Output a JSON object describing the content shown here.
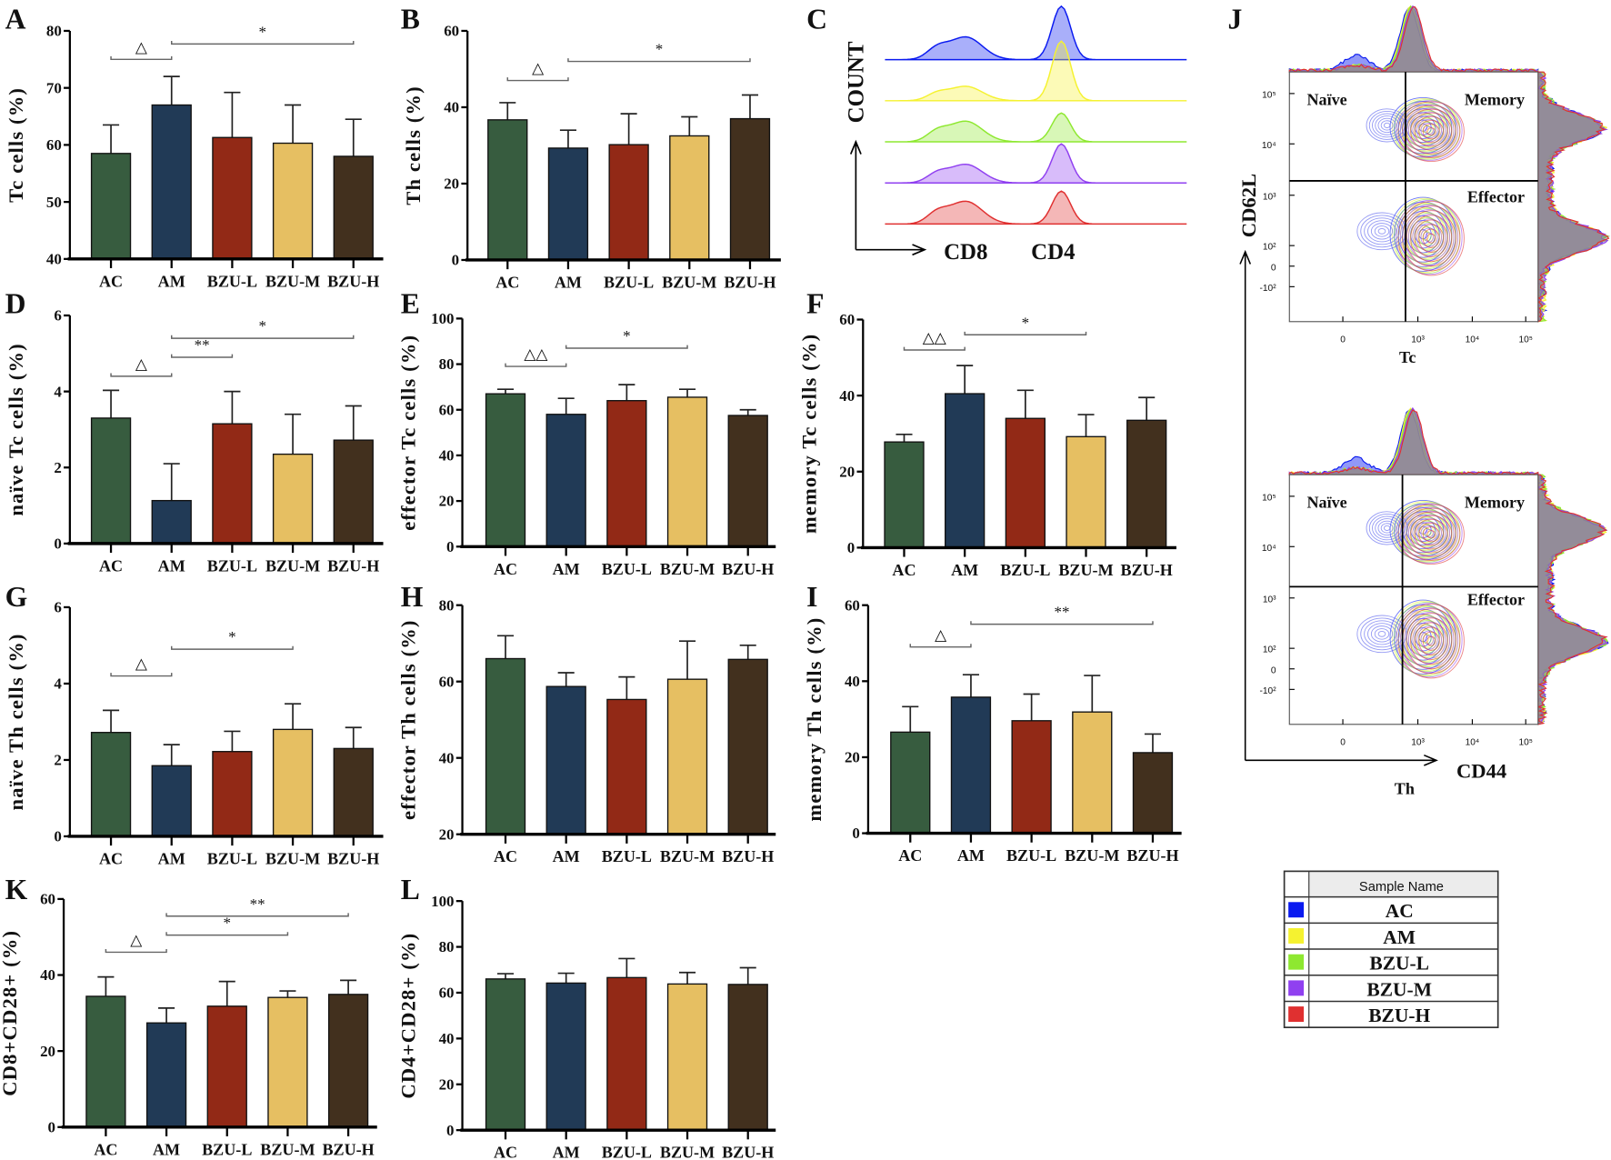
{
  "chart_data": [
    {
      "panel": "A",
      "type": "bar",
      "categories": [
        "AC",
        "AM",
        "BZU-L",
        "BZU-M",
        "BZU-H"
      ],
      "ylabel": "Tc cells (%)",
      "ylim": [
        40,
        80
      ],
      "yticks": [
        40,
        50,
        60,
        70,
        80
      ],
      "values": [
        58.5,
        67,
        61.3,
        60.3,
        58
      ],
      "error_upper": [
        63.5,
        72,
        69.2,
        67,
        64.5
      ],
      "annotations": [
        {
          "from": 0,
          "to": 1,
          "level": 75,
          "label": "△"
        },
        {
          "from": 1,
          "to": 4,
          "level": 77.7,
          "label": "*"
        }
      ]
    },
    {
      "panel": "B",
      "type": "bar",
      "categories": [
        "AC",
        "AM",
        "BZU-L",
        "BZU-M",
        "BZU-H"
      ],
      "ylabel": "Th cells (%)",
      "ylim": [
        0,
        60
      ],
      "yticks": [
        0,
        20,
        40,
        60
      ],
      "values": [
        36.7,
        29.3,
        30.2,
        32.5,
        37
      ],
      "error_upper": [
        41.2,
        34,
        38.3,
        37.5,
        43.2
      ],
      "annotations": [
        {
          "from": 0,
          "to": 1,
          "level": 47,
          "label": "△"
        },
        {
          "from": 1,
          "to": 4,
          "level": 52,
          "label": "*"
        }
      ]
    },
    {
      "panel": "C",
      "type": "histogram",
      "ylabel": "COUNT",
      "xlabels": [
        "CD8",
        "CD4"
      ],
      "series": [
        "AC",
        "AM",
        "BZU-L",
        "BZU-M",
        "BZU-H"
      ]
    },
    {
      "panel": "D",
      "type": "bar",
      "categories": [
        "AC",
        "AM",
        "BZU-L",
        "BZU-M",
        "BZU-H"
      ],
      "ylabel": "naïve Tc cells (%)",
      "ylim": [
        0,
        6
      ],
      "yticks": [
        0,
        2,
        4,
        6
      ],
      "values": [
        3.3,
        1.13,
        3.15,
        2.35,
        2.72
      ],
      "error_upper": [
        4.03,
        2.1,
        4.0,
        3.4,
        3.62
      ],
      "annotations": [
        {
          "from": 0,
          "to": 1,
          "level": 4.4,
          "label": "△"
        },
        {
          "from": 1,
          "to": 2,
          "level": 4.9,
          "label": "**"
        },
        {
          "from": 1,
          "to": 4,
          "level": 5.4,
          "label": "*"
        }
      ]
    },
    {
      "panel": "E",
      "type": "bar",
      "categories": [
        "AC",
        "AM",
        "BZU-L",
        "BZU-M",
        "BZU-H"
      ],
      "ylabel": "effector Tc cells (%)",
      "ylim": [
        0,
        100
      ],
      "yticks": [
        0,
        20,
        40,
        60,
        80,
        100
      ],
      "values": [
        67,
        58,
        64,
        65.5,
        57.5
      ],
      "error_upper": [
        69,
        65,
        71,
        69,
        60
      ],
      "annotations": [
        {
          "from": 0,
          "to": 1,
          "level": 79,
          "label": "△△"
        },
        {
          "from": 1,
          "to": 3,
          "level": 87,
          "label": "*"
        }
      ]
    },
    {
      "panel": "F",
      "type": "bar",
      "categories": [
        "AC",
        "AM",
        "BZU-L",
        "BZU-M",
        "BZU-H"
      ],
      "ylabel": "memory Tc cells (%)",
      "ylim": [
        0,
        60
      ],
      "yticks": [
        0,
        20,
        40,
        60
      ],
      "values": [
        27.8,
        40.5,
        34,
        29.2,
        33.5
      ],
      "error_upper": [
        29.8,
        47.9,
        41.4,
        35,
        39.5
      ],
      "annotations": [
        {
          "from": 0,
          "to": 1,
          "level": 52,
          "label": "△△"
        },
        {
          "from": 1,
          "to": 3,
          "level": 56,
          "label": "*"
        }
      ]
    },
    {
      "panel": "G",
      "type": "bar",
      "categories": [
        "AC",
        "AM",
        "BZU-L",
        "BZU-M",
        "BZU-H"
      ],
      "ylabel": "naïve Th cells (%)",
      "ylim": [
        0,
        6
      ],
      "yticks": [
        0,
        2,
        4,
        6
      ],
      "values": [
        2.72,
        1.85,
        2.22,
        2.8,
        2.3
      ],
      "error_upper": [
        3.3,
        2.4,
        2.75,
        3.47,
        2.85
      ],
      "annotations": [
        {
          "from": 0,
          "to": 1,
          "level": 4.2,
          "label": "△"
        },
        {
          "from": 1,
          "to": 3,
          "level": 4.9,
          "label": "*"
        }
      ]
    },
    {
      "panel": "H",
      "type": "bar",
      "categories": [
        "AC",
        "AM",
        "BZU-L",
        "BZU-M",
        "BZU-H"
      ],
      "ylabel": "effector Th cells (%)",
      "ylim": [
        20,
        80
      ],
      "yticks": [
        20,
        40,
        60,
        80
      ],
      "values": [
        66,
        58.7,
        55.3,
        60.6,
        65.8
      ],
      "error_upper": [
        72,
        62.3,
        61.2,
        70.6,
        69.5
      ],
      "annotations": []
    },
    {
      "panel": "I",
      "type": "bar",
      "categories": [
        "AC",
        "AM",
        "BZU-L",
        "BZU-M",
        "BZU-H"
      ],
      "ylabel": "memory Th cells (%)",
      "ylim": [
        0,
        60
      ],
      "yticks": [
        0,
        20,
        40,
        60
      ],
      "values": [
        26.6,
        35.8,
        29.6,
        31.9,
        21.2
      ],
      "error_upper": [
        33.3,
        41.7,
        36.6,
        41.5,
        26.1
      ],
      "annotations": [
        {
          "from": 0,
          "to": 1,
          "level": 49,
          "label": "△"
        },
        {
          "from": 1,
          "to": 4,
          "level": 55,
          "label": "**"
        }
      ]
    },
    {
      "panel": "J",
      "type": "scatter",
      "xlabel": "CD44",
      "ylabel": "CD62L",
      "subplots": [
        "Tc",
        "Th"
      ],
      "quadrants": [
        "Naïve",
        "Memory",
        "Effector"
      ],
      "yticks": [
        "10⁵",
        "10⁴",
        "10³",
        "10²",
        "0",
        "-10²"
      ],
      "xticks": [
        "0",
        "10³",
        "10⁴",
        "10⁵"
      ]
    },
    {
      "panel": "K",
      "type": "bar",
      "categories": [
        "AC",
        "AM",
        "BZU-L",
        "BZU-M",
        "BZU-H"
      ],
      "ylabel": "CD8+CD28+ (%)",
      "ylim": [
        0,
        60
      ],
      "yticks": [
        0,
        20,
        40,
        60
      ],
      "values": [
        34.4,
        27.4,
        31.8,
        34.1,
        34.9
      ],
      "error_upper": [
        39.5,
        31.3,
        38.3,
        35.8,
        38.6
      ],
      "annotations": [
        {
          "from": 0,
          "to": 1,
          "level": 46,
          "label": "△"
        },
        {
          "from": 1,
          "to": 3,
          "level": 50.5,
          "label": "*"
        },
        {
          "from": 1,
          "to": 4,
          "level": 55.5,
          "label": "**"
        }
      ]
    },
    {
      "panel": "L",
      "type": "bar",
      "categories": [
        "AC",
        "AM",
        "BZU-L",
        "BZU-M",
        "BZU-H"
      ],
      "ylabel": "CD4+CD28+ (%)",
      "ylim": [
        0,
        100
      ],
      "yticks": [
        0,
        20,
        40,
        60,
        80,
        100
      ],
      "values": [
        66,
        64.2,
        66.6,
        63.8,
        63.6
      ],
      "error_upper": [
        68.3,
        68.5,
        74.9,
        68.8,
        70.9
      ],
      "annotations": []
    }
  ],
  "bar_colors": [
    "#375c3f",
    "#213a56",
    "#922916",
    "#e6bf62",
    "#42301e"
  ],
  "legend": {
    "title": "Sample Name",
    "items": [
      {
        "label": "AC",
        "color": "#0a1af0"
      },
      {
        "label": "AM",
        "color": "#f5f230"
      },
      {
        "label": "BZU-L",
        "color": "#8ee830"
      },
      {
        "label": "BZU-M",
        "color": "#9040f0"
      },
      {
        "label": "BZU-H",
        "color": "#e03030"
      }
    ]
  }
}
